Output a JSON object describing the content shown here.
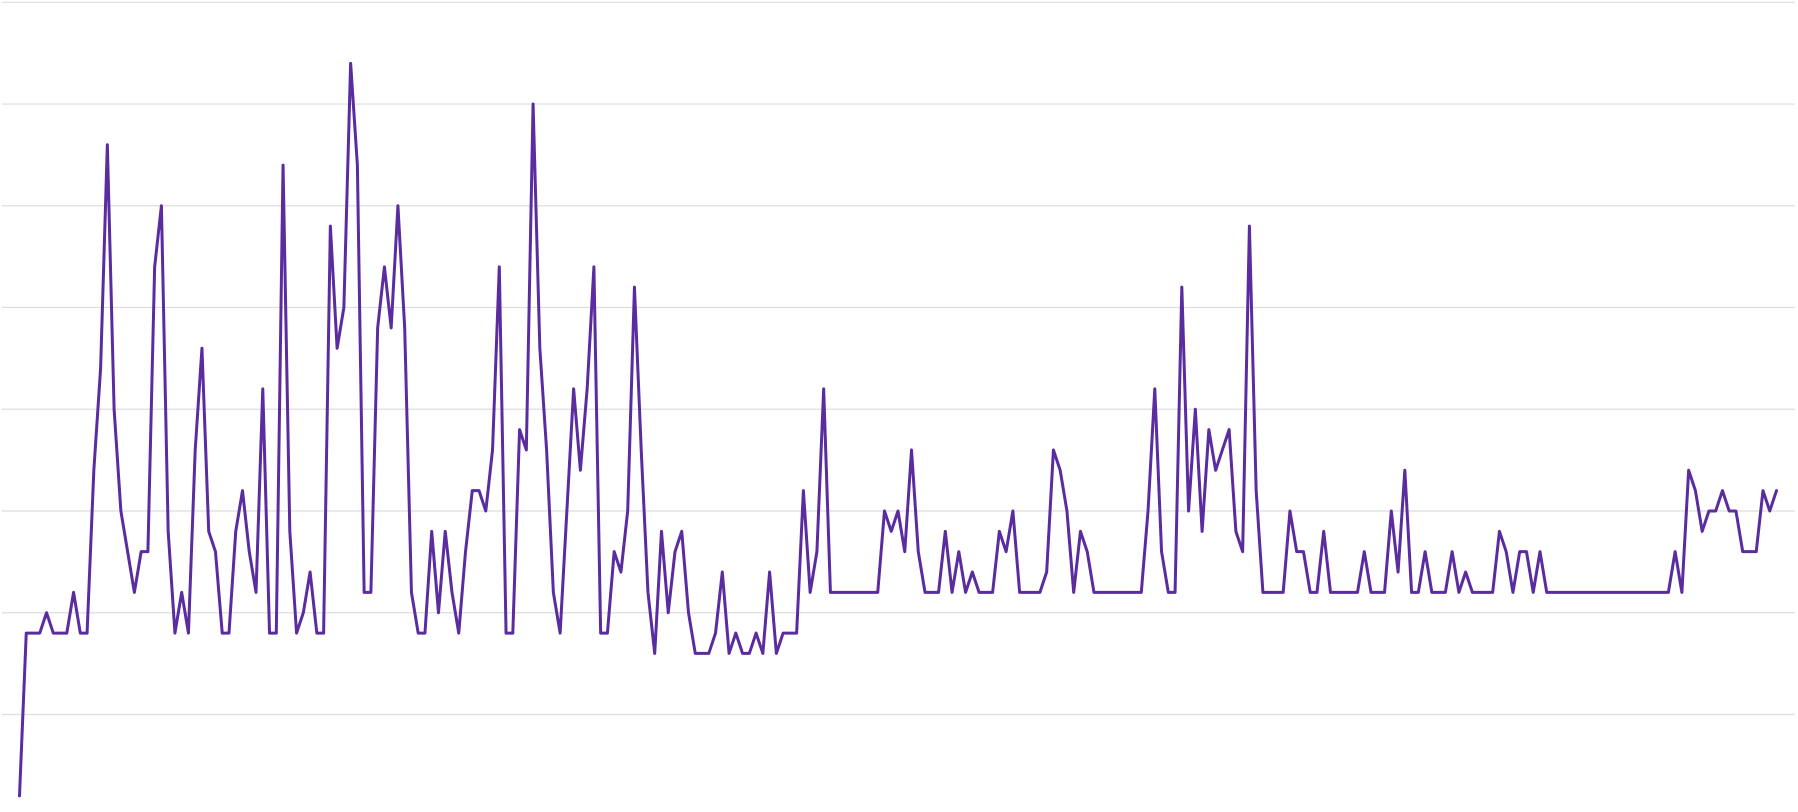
{
  "chart_data": {
    "type": "line",
    "color": "#5a2ca0",
    "grid": true,
    "ylim": [
      0,
      8
    ],
    "yticks": [
      1,
      2,
      3,
      4,
      5,
      6,
      7,
      8
    ],
    "values": [
      0.2,
      1.8,
      1.8,
      1.8,
      2.0,
      1.8,
      1.8,
      1.8,
      2.2,
      1.8,
      1.8,
      3.4,
      4.4,
      6.6,
      4.0,
      3.0,
      2.6,
      2.2,
      2.6,
      2.6,
      5.4,
      6.0,
      2.8,
      1.8,
      2.2,
      1.8,
      3.6,
      4.6,
      2.8,
      2.6,
      1.8,
      1.8,
      2.8,
      3.2,
      2.6,
      2.2,
      4.2,
      1.8,
      1.8,
      6.4,
      2.8,
      1.8,
      2.0,
      2.4,
      1.8,
      1.8,
      5.8,
      4.6,
      5.0,
      7.4,
      6.4,
      2.2,
      2.2,
      4.8,
      5.4,
      4.8,
      6.0,
      4.8,
      2.2,
      1.8,
      1.8,
      2.8,
      2.0,
      2.8,
      2.2,
      1.8,
      2.6,
      3.2,
      3.2,
      3.0,
      3.6,
      5.4,
      1.8,
      1.8,
      3.8,
      3.6,
      7.0,
      4.6,
      3.6,
      2.2,
      1.8,
      3.0,
      4.2,
      3.4,
      4.2,
      5.4,
      1.8,
      1.8,
      2.6,
      2.4,
      3.0,
      5.2,
      3.6,
      2.2,
      1.6,
      2.8,
      2.0,
      2.6,
      2.8,
      2.0,
      1.6,
      1.6,
      1.6,
      1.8,
      2.4,
      1.6,
      1.8,
      1.6,
      1.6,
      1.8,
      1.6,
      2.4,
      1.6,
      1.8,
      1.8,
      1.8,
      3.2,
      2.2,
      2.6,
      4.2,
      2.2,
      2.2,
      2.2,
      2.2,
      2.2,
      2.2,
      2.2,
      2.2,
      3.0,
      2.8,
      3.0,
      2.6,
      3.6,
      2.6,
      2.2,
      2.2,
      2.2,
      2.8,
      2.2,
      2.6,
      2.2,
      2.4,
      2.2,
      2.2,
      2.2,
      2.8,
      2.6,
      3.0,
      2.2,
      2.2,
      2.2,
      2.2,
      2.4,
      3.6,
      3.4,
      3.0,
      2.2,
      2.8,
      2.6,
      2.2,
      2.2,
      2.2,
      2.2,
      2.2,
      2.2,
      2.2,
      2.2,
      3.0,
      4.2,
      2.6,
      2.2,
      2.2,
      5.2,
      3.0,
      4.0,
      2.8,
      3.8,
      3.4,
      3.6,
      3.8,
      2.8,
      2.6,
      5.8,
      3.2,
      2.2,
      2.2,
      2.2,
      2.2,
      3.0,
      2.6,
      2.6,
      2.2,
      2.2,
      2.8,
      2.2,
      2.2,
      2.2,
      2.2,
      2.2,
      2.6,
      2.2,
      2.2,
      2.2,
      3.0,
      2.4,
      3.4,
      2.2,
      2.2,
      2.6,
      2.2,
      2.2,
      2.2,
      2.6,
      2.2,
      2.4,
      2.2,
      2.2,
      2.2,
      2.2,
      2.8,
      2.6,
      2.2,
      2.6,
      2.6,
      2.2,
      2.6,
      2.2,
      2.2,
      2.2,
      2.2,
      2.2,
      2.2,
      2.2,
      2.2,
      2.2,
      2.2,
      2.2,
      2.2,
      2.2,
      2.2,
      2.2,
      2.2,
      2.2,
      2.2,
      2.2,
      2.6,
      2.2,
      3.4,
      3.2,
      2.8,
      3.0,
      3.0,
      3.2,
      3.0,
      3.0,
      2.6,
      2.6,
      2.6,
      3.2,
      3.0,
      3.2
    ]
  }
}
